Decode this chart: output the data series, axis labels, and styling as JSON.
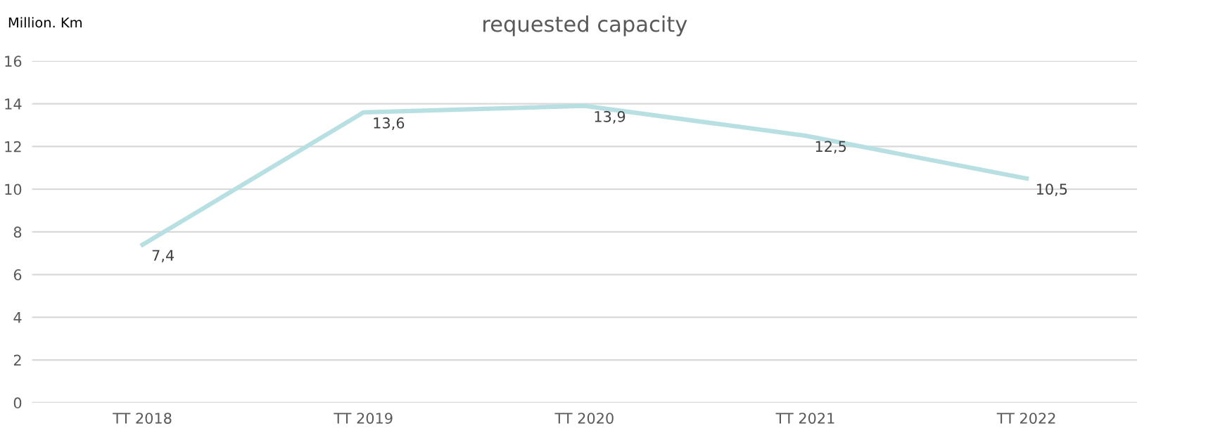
{
  "chart_data": {
    "type": "line",
    "title": "requested capacity",
    "ylabel": "Million. Km",
    "categories": [
      "TT 2018",
      "TT 2019",
      "TT 2020",
      "TT 2021",
      "TT 2022"
    ],
    "series": [
      {
        "color": "#b8e0e2",
        "values": [
          7.4,
          13.6,
          13.9,
          12.5,
          10.5
        ],
        "value_labels": [
          "7,4",
          "13,6",
          "13,9",
          "12,5",
          "10,5"
        ]
      }
    ],
    "ylim": [
      0,
      16
    ],
    "yticks": [
      0,
      2,
      4,
      6,
      8,
      10,
      12,
      14,
      16
    ],
    "grid": "y",
    "legend": false,
    "marker": "none",
    "line_style": "solid"
  }
}
